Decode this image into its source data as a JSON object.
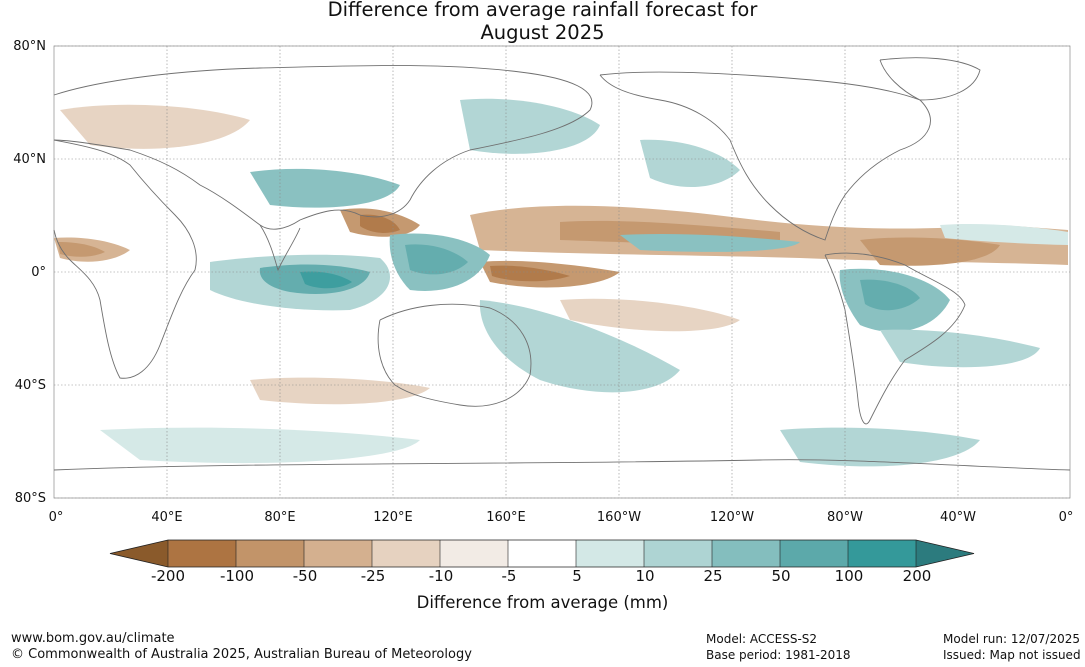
{
  "title": {
    "line1": "Difference from average rainfall forecast for",
    "line2": "August 2025"
  },
  "axes": {
    "lat_labels": [
      "80°N",
      "40°N",
      "0°",
      "40°S",
      "80°S"
    ],
    "lon_labels": [
      "0°",
      "40°E",
      "80°E",
      "120°E",
      "160°E",
      "160°W",
      "120°W",
      "80°W",
      "40°W",
      "0°"
    ]
  },
  "colorbar": {
    "tick_labels": [
      "-200",
      "-100",
      "-50",
      "-25",
      "-10",
      "-5",
      "5",
      "10",
      "25",
      "50",
      "100",
      "200"
    ],
    "colors": [
      "#8a5a2b",
      "#ad7442",
      "#c29469",
      "#d4b08f",
      "#e6d2c0",
      "#f2ebe5",
      "#ffffff",
      "#d3e8e6",
      "#aed4d3",
      "#84bebe",
      "#5ca9aa",
      "#34999a",
      "#2c7b7e"
    ],
    "label": "Difference from average (mm)"
  },
  "footer": {
    "website": "www.bom.gov.au/climate",
    "copyright": "© Commonwealth of Australia 2025, Australian Bureau of Meteorology",
    "model": "Model: ACCESS-S2",
    "base_period": "Base period: 1981-2018",
    "model_run": "Model run: 12/07/2025",
    "issued": "Issued: Map not issued"
  }
}
